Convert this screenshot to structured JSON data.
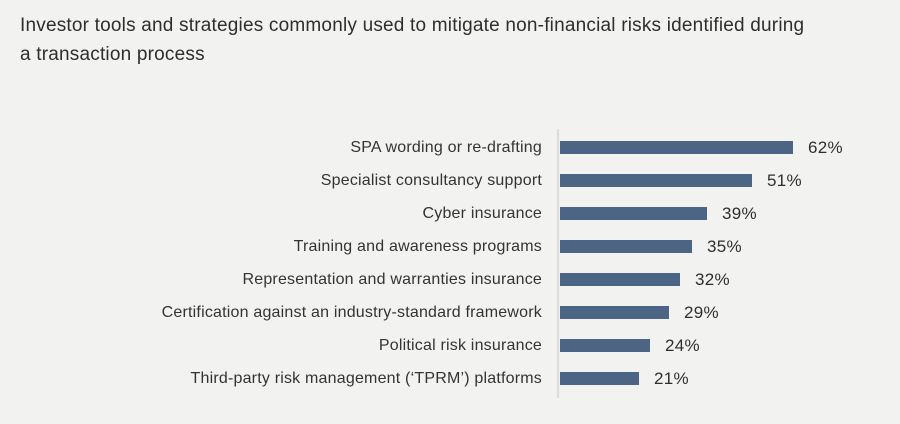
{
  "title": "Investor tools and strategies commonly used to mitigate non-financial risks identified during a transaction process",
  "colors": {
    "background": "#f2f2f0",
    "bar": "#4d6585",
    "axis_line": "#dcdcda",
    "title_text": "#2e2e2e",
    "label_text": "#333333"
  },
  "chart_data": {
    "type": "bar",
    "orientation": "horizontal",
    "title": "Investor tools and strategies commonly used to mitigate non-financial risks identified during a transaction process",
    "categories": [
      "SPA wording or re-drafting",
      "Specialist consultancy support",
      "Cyber insurance",
      "Training and awareness programs",
      "Representation and warranties insurance",
      "Certification against an industry-standard framework",
      "Political risk insurance",
      "Third-party risk management (‘TPRM’) platforms"
    ],
    "values": [
      62,
      51,
      39,
      35,
      32,
      29,
      24,
      21
    ],
    "value_suffix": "%",
    "xlabel": "",
    "ylabel": "",
    "xlim": [
      0,
      70
    ],
    "grid": false,
    "legend": false,
    "data_labels": "outside-end"
  }
}
